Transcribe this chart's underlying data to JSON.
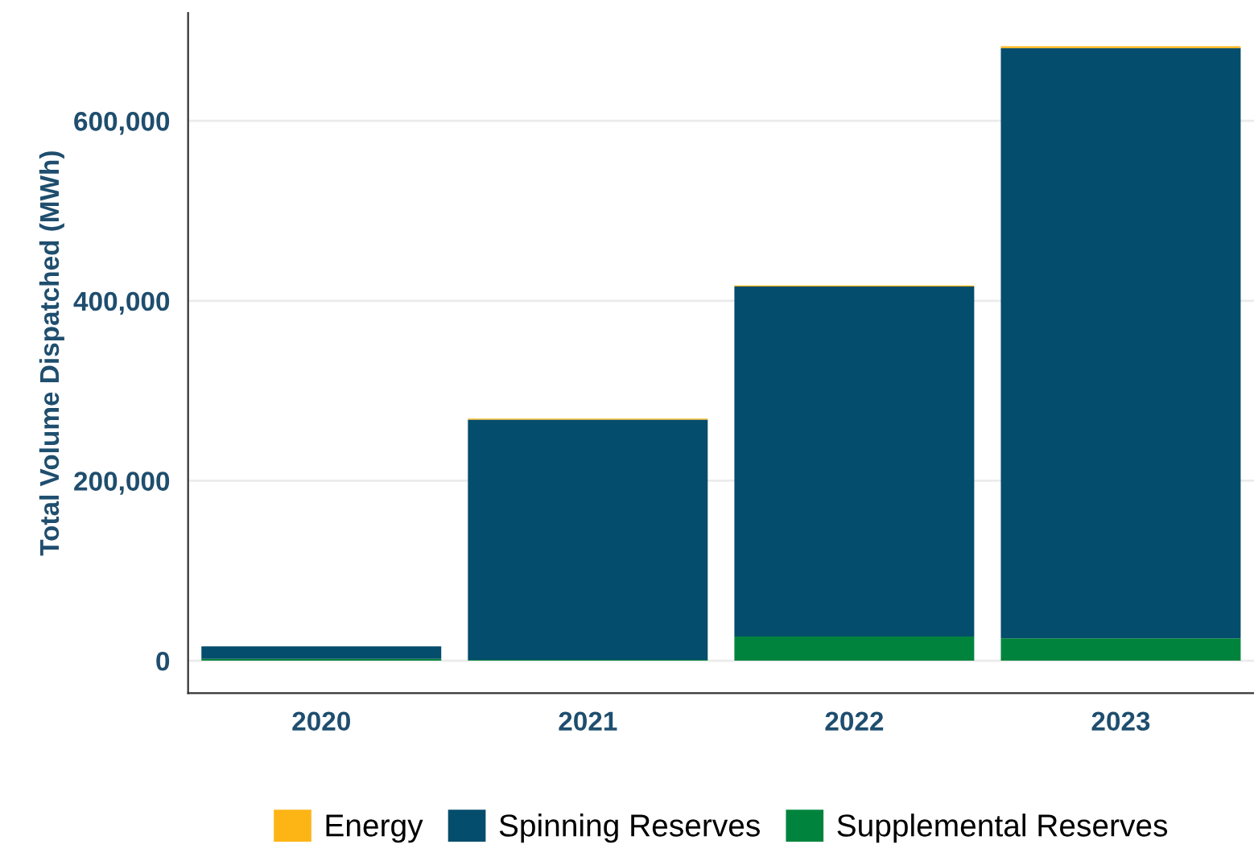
{
  "chart_data": {
    "type": "bar",
    "stacked": true,
    "ylabel": "Total Volume Dispatched (MWh)",
    "categories": [
      "2020",
      "2021",
      "2022",
      "2023"
    ],
    "series": [
      {
        "name": "Supplemental Reserves",
        "color": "#00843d",
        "values": [
          2000,
          1000,
          27000,
          25000
        ]
      },
      {
        "name": "Spinning Reserves",
        "color": "#044d6c",
        "values": [
          14000,
          267000,
          389000,
          656000
        ]
      },
      {
        "name": "Energy",
        "color": "#fdb515",
        "values": [
          null,
          1000,
          1000,
          2000
        ]
      }
    ],
    "ylim": [
      -36000,
      720000
    ],
    "yticks": [
      {
        "value": 0,
        "label": "0"
      },
      {
        "value": 200000,
        "label": "200,000"
      },
      {
        "value": 400000,
        "label": "400,000"
      },
      {
        "value": 600000,
        "label": "600,000"
      }
    ],
    "grid": "y",
    "legend": "bottom"
  }
}
